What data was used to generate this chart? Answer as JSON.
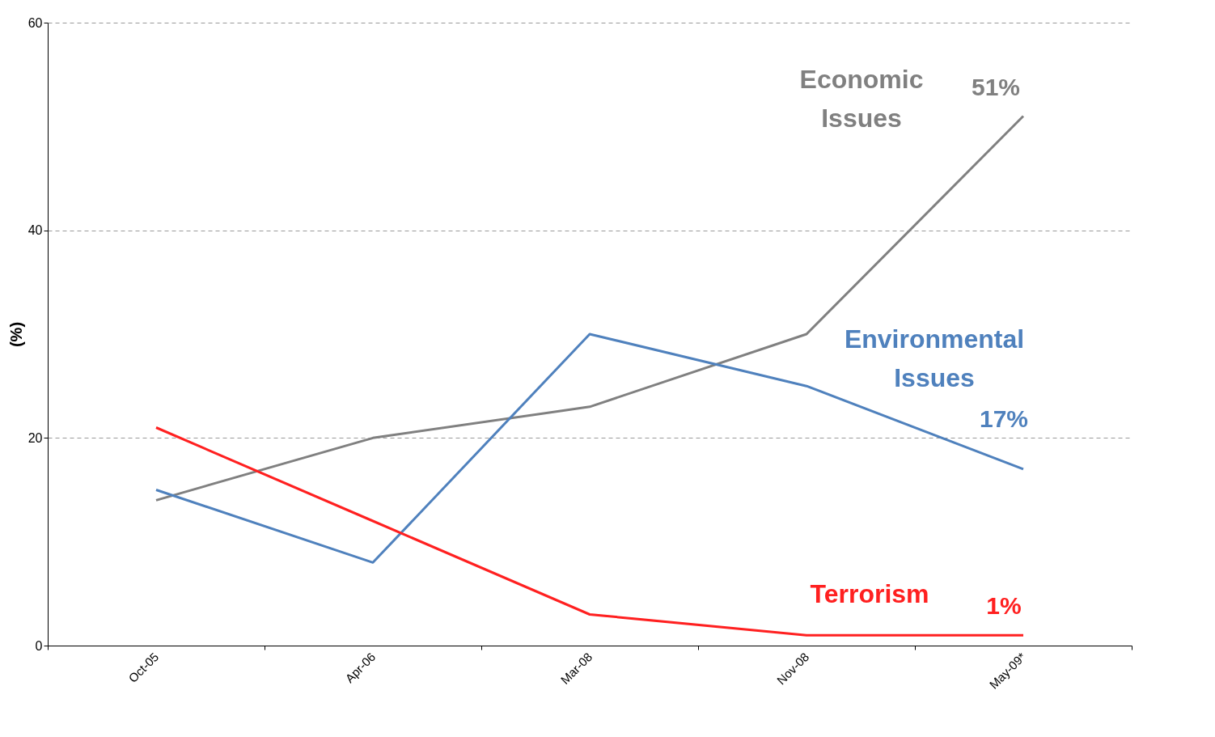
{
  "chart_data": {
    "type": "line",
    "ylabel": "(%)",
    "categories": [
      "Oct-05",
      "Apr-06",
      "Mar-08",
      "Nov-08",
      "May-09*"
    ],
    "series": [
      {
        "name": "Economic Issues",
        "color": "#808080",
        "values": [
          14,
          20,
          23,
          30,
          51
        ],
        "value_labels": [
          null,
          null,
          null,
          null,
          "51%"
        ]
      },
      {
        "name": "Environmental Issues",
        "color": "#4f81bd",
        "values": [
          15,
          8,
          30,
          25,
          17
        ],
        "value_labels": [
          null,
          null,
          null,
          null,
          "17%"
        ]
      },
      {
        "name": "Terrorism",
        "color": "#ff2020",
        "values": [
          21,
          12,
          3,
          1,
          1
        ],
        "value_labels": [
          null,
          null,
          null,
          null,
          "1%"
        ]
      }
    ],
    "ylim": [
      0,
      60
    ],
    "yticks": [
      0,
      20,
      40,
      60
    ],
    "grid": "y",
    "legend": false,
    "marker": "none",
    "line_style": "solid"
  }
}
